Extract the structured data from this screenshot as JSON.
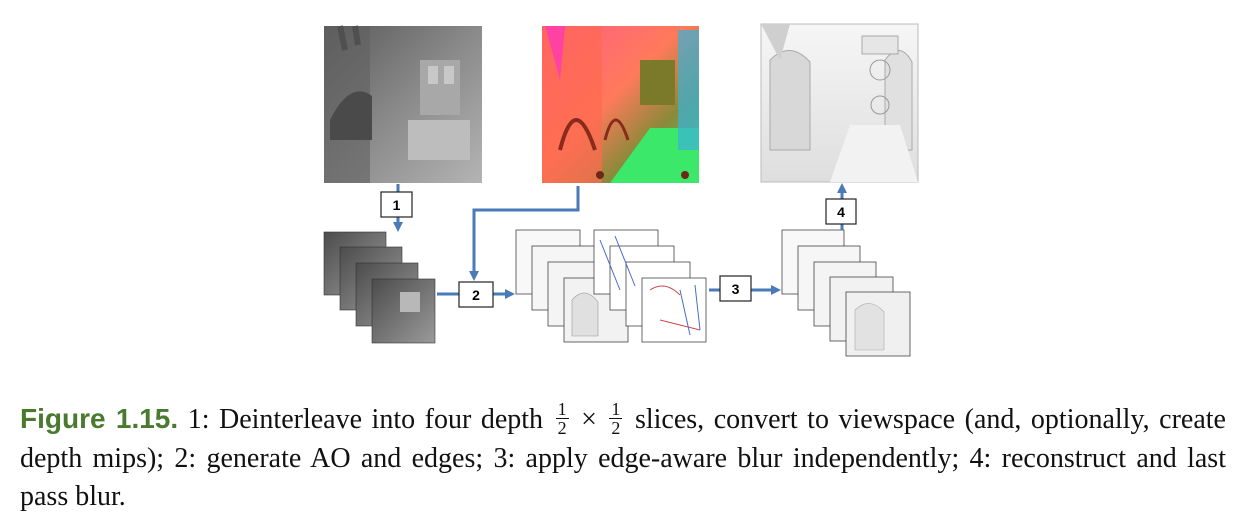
{
  "steps": [
    {
      "label": "1"
    },
    {
      "label": "2"
    },
    {
      "label": "3"
    },
    {
      "label": "4"
    }
  ],
  "caption": {
    "figure_label": "Figure 1.15.",
    "step1_text": " 1: Deinterleave into four depth ",
    "frac_num": "1",
    "frac_den": "2",
    "times": " × ",
    "step1_rest": " slices, convert to viewspace (and, optionally, create depth mips); 2: generate AO and edges; 3: apply edge-aware blur independently; 4: reconstruct and last pass blur."
  },
  "colors": {
    "arrow": "#4a7ab8",
    "figure_label": "#4a7a2e"
  }
}
